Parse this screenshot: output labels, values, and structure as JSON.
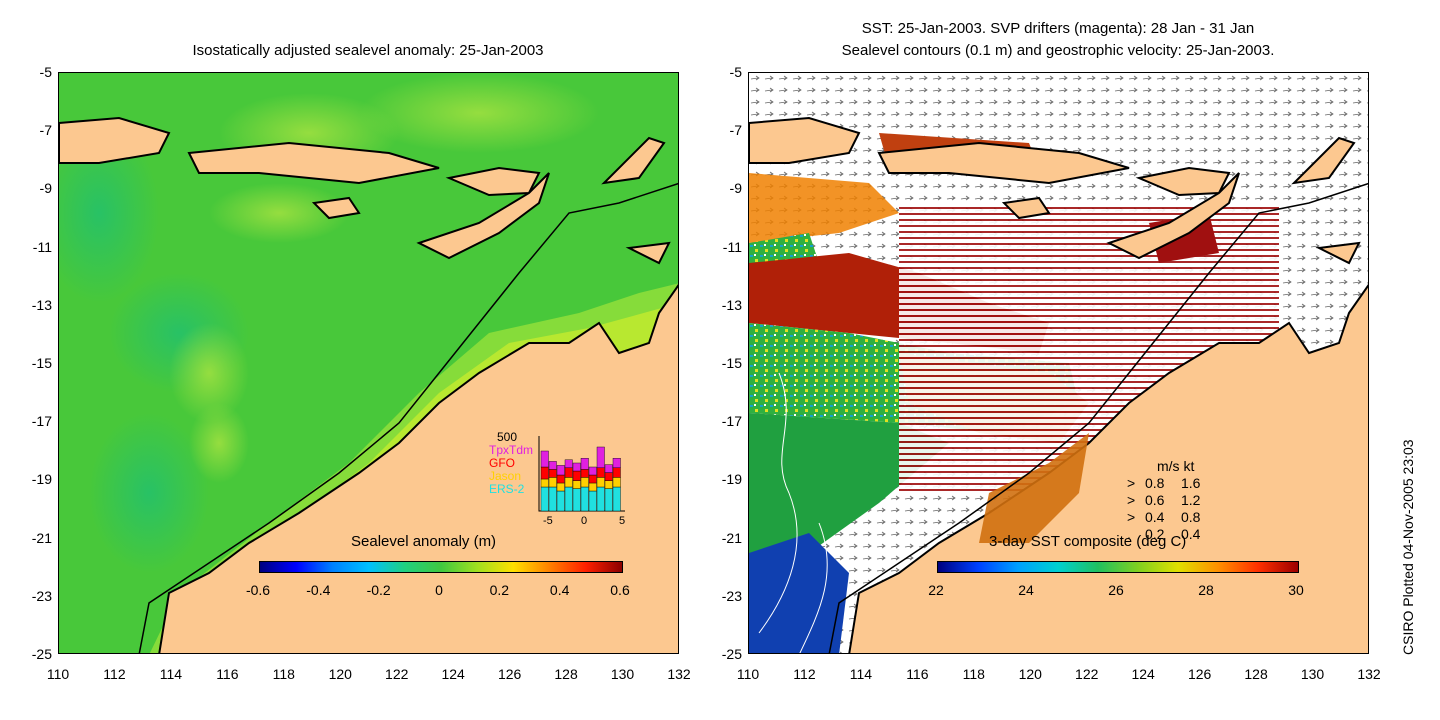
{
  "left_panel": {
    "title": "Isostatically adjusted sealevel anomaly: 25-Jan-2003",
    "colorbar": {
      "title": "Sealevel anomaly (m)",
      "ticks": [
        "-0.6",
        "-0.4",
        "-0.2",
        "0",
        "0.2",
        "0.4",
        "0.6"
      ]
    },
    "satellite_legend": {
      "scale_label": "500",
      "entries": [
        {
          "name": "TpxTdm",
          "color": "#e020e0"
        },
        {
          "name": "GFO",
          "color": "#ff0000"
        },
        {
          "name": "Jason",
          "color": "#ffd000"
        },
        {
          "name": "ERS-2",
          "color": "#20e0e0"
        }
      ],
      "axis_ticks": [
        "-5",
        "0",
        "5"
      ],
      "bars": [
        {
          "day": -5,
          "ers": 0.3,
          "jason": 0.1,
          "gfo": 0.15,
          "tpx": 0.2
        },
        {
          "day": -4,
          "ers": 0.3,
          "jason": 0.12,
          "gfo": 0.1,
          "tpx": 0.1
        },
        {
          "day": -3,
          "ers": 0.25,
          "jason": 0.1,
          "gfo": 0.1,
          "tpx": 0.12
        },
        {
          "day": -2,
          "ers": 0.3,
          "jason": 0.12,
          "gfo": 0.12,
          "tpx": 0.1
        },
        {
          "day": -1,
          "ers": 0.28,
          "jason": 0.1,
          "gfo": 0.12,
          "tpx": 0.1
        },
        {
          "day": 0,
          "ers": 0.3,
          "jason": 0.12,
          "gfo": 0.1,
          "tpx": 0.14
        },
        {
          "day": 1,
          "ers": 0.25,
          "jason": 0.1,
          "gfo": 0.1,
          "tpx": 0.1
        },
        {
          "day": 2,
          "ers": 0.3,
          "jason": 0.12,
          "gfo": 0.12,
          "tpx": 0.26
        },
        {
          "day": 3,
          "ers": 0.28,
          "jason": 0.1,
          "gfo": 0.1,
          "tpx": 0.1
        },
        {
          "day": 4,
          "ers": 0.3,
          "jason": 0.12,
          "gfo": 0.12,
          "tpx": 0.12
        }
      ]
    }
  },
  "right_panel": {
    "title_line1": "SST: 25-Jan-2003. SVP drifters (magenta): 28 Jan - 31 Jan",
    "title_line2": "Sealevel contours (0.1 m) and geostrophic velocity: 25-Jan-2003.",
    "colorbar": {
      "title": "3-day SST composite (deg C)",
      "ticks": [
        "22",
        "24",
        "26",
        "28",
        "30"
      ]
    },
    "velocity_legend": {
      "header": "m/s  kt",
      "rows": [
        {
          "symbol": ">",
          "ms": "0.8",
          "kt": "1.6"
        },
        {
          "symbol": ">",
          "ms": "0.6",
          "kt": "1.2"
        },
        {
          "symbol": ">",
          "ms": "0.4",
          "kt": "0.8"
        },
        {
          "symbol": ".",
          "ms": "0.2",
          "kt": "0.4"
        }
      ]
    }
  },
  "axes": {
    "y_ticks": [
      "-5",
      "-7",
      "-9",
      "-11",
      "-13",
      "-15",
      "-17",
      "-19",
      "-21",
      "-23",
      "-25"
    ],
    "x_ticks": [
      "110",
      "112",
      "114",
      "116",
      "118",
      "120",
      "122",
      "124",
      "126",
      "128",
      "130",
      "132"
    ]
  },
  "credit": "CSIRO Plotted 04-Nov-2005 23:03",
  "colors": {
    "land": "#fcc890",
    "ocean_green": "#4ccc3c",
    "shelf_yellow": "#b8e830",
    "sst_red": "#a01010"
  }
}
